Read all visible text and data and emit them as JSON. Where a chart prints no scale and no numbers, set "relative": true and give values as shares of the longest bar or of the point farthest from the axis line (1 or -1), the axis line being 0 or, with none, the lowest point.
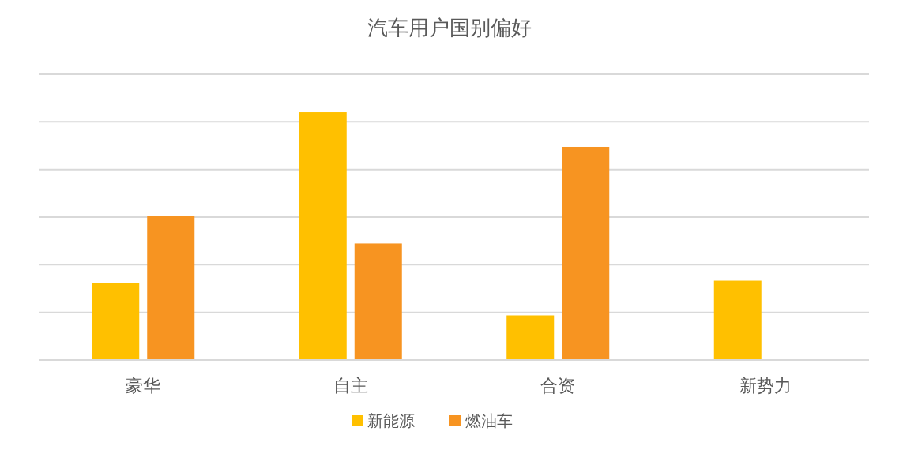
{
  "chart_data": {
    "type": "bar",
    "title": "汽车用户国别偏好",
    "categories": [
      "豪华",
      "自主",
      "合资",
      "新势力"
    ],
    "relative": true,
    "series": [
      {
        "name": "新能源",
        "color": "#ffc000",
        "values": [
          0.31,
          1,
          0.18,
          0.32
        ]
      },
      {
        "name": "燃油车",
        "color": "#f79421",
        "values": [
          0.58,
          0.47,
          0.86,
          null
        ]
      }
    ],
    "grid": true,
    "legend": "bottom"
  }
}
